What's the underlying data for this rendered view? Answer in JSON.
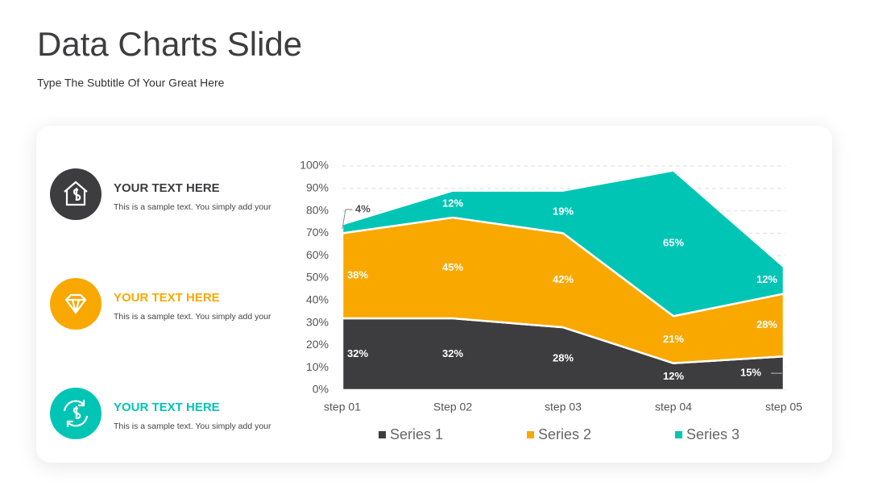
{
  "header": {
    "title": "Data Charts Slide",
    "subtitle": "Type The Subtitle Of Your Great Here"
  },
  "items": [
    {
      "heading": "YOUR TEXT HERE",
      "text": "This is a sample text. You simply add your",
      "color": "#3d3d3f"
    },
    {
      "heading": "YOUR TEXT HERE",
      "text": "This is a sample text. You simply add your",
      "color": "#f9a800"
    },
    {
      "heading": "YOUR TEXT HERE",
      "text": "This is a sample text. You simply add your",
      "color": "#00c5b5"
    }
  ],
  "chart_data": {
    "type": "stacked_area",
    "categories": [
      "step 01",
      "Step 02",
      "step 03",
      "step 04",
      "step 05"
    ],
    "series": [
      {
        "name": "Series 1",
        "color": "#3d3d3f",
        "values": [
          32,
          32,
          28,
          12,
          15
        ],
        "value_labels": [
          "32%",
          "32%",
          "28%",
          "12%",
          "15%"
        ]
      },
      {
        "name": "Series 2",
        "color": "#f9a800",
        "values": [
          38,
          45,
          42,
          21,
          28
        ],
        "value_labels": [
          "38%",
          "45%",
          "42%",
          "21%",
          "28%"
        ]
      },
      {
        "name": "Series 3",
        "color": "#00c5b5",
        "values": [
          4,
          12,
          19,
          65,
          12
        ],
        "value_labels": [
          "4%",
          "12%",
          "19%",
          "65%",
          "12%"
        ]
      }
    ],
    "ylim": [
      0,
      100
    ],
    "yticks": [
      {
        "value": 0,
        "label": "0%"
      },
      {
        "value": 10,
        "label": "10%"
      },
      {
        "value": 20,
        "label": "20%"
      },
      {
        "value": 30,
        "label": "30%"
      },
      {
        "value": 40,
        "label": "40%"
      },
      {
        "value": 50,
        "label": "50%"
      },
      {
        "value": 60,
        "label": "60%"
      },
      {
        "value": 70,
        "label": "70%"
      },
      {
        "value": 80,
        "label": "80%"
      },
      {
        "value": 90,
        "label": "90%"
      },
      {
        "value": 100,
        "label": "100%"
      }
    ],
    "grid": true
  }
}
